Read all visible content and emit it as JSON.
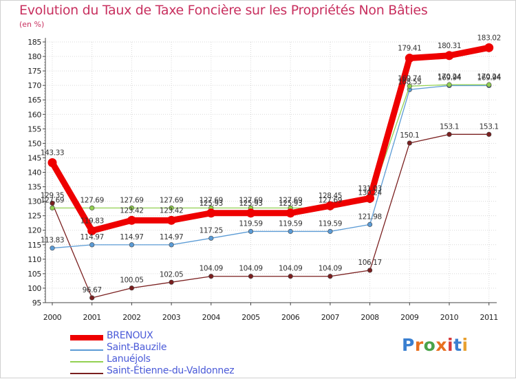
{
  "colors": {
    "title": "#c8305f",
    "legend_text": "#4a5ad8",
    "axis": "#444444",
    "grid": "#d8d8d8",
    "logo": [
      "#3a7fd0",
      "#e8701f",
      "#4aa34a",
      "#e8701f",
      "#d73a3a",
      "#3a7fd0",
      "#e8a02f"
    ]
  },
  "chart_data": {
    "type": "line",
    "title": "Evolution du Taux de Taxe Foncière sur les Propriétés Non Bâties",
    "unit_label": "(en %)",
    "x": [
      "2000",
      "2001",
      "2002",
      "2003",
      "2004",
      "2005",
      "2006",
      "2007",
      "2008",
      "2009",
      "2010",
      "2011"
    ],
    "ylim": [
      95,
      185
    ],
    "yticks": [
      95,
      100,
      105,
      110,
      115,
      120,
      125,
      130,
      135,
      140,
      145,
      150,
      155,
      160,
      165,
      170,
      175,
      180,
      185
    ],
    "series": [
      {
        "name": "BRENOUX",
        "color": "#ee0000",
        "values": [
          143.33,
          119.83,
          123.42,
          123.42,
          125.93,
          125.93,
          125.93,
          128.45,
          131.03,
          179.41,
          180.31,
          183.02
        ],
        "labels": [
          "143.33",
          "119.83",
          "123.42",
          "123.42",
          "125.93",
          "125.93",
          "125.93",
          "128.45",
          "131.03",
          "179.41",
          "180.31",
          "183.02"
        ]
      },
      {
        "name": "Saint-Bauzile",
        "color": "#5b9bd5",
        "values": [
          113.83,
          114.97,
          114.97,
          114.97,
          117.25,
          119.59,
          119.59,
          119.59,
          121.98,
          168.55,
          169.94,
          169.94
        ],
        "labels": [
          "113.83",
          "114.97",
          "114.97",
          "114.97",
          "117.25",
          "119.59",
          "119.59",
          "119.59",
          "121.98",
          "168.55",
          "169.94",
          "169.94"
        ]
      },
      {
        "name": "Lanuéjols",
        "color": "#92d050",
        "values": [
          127.69,
          127.69,
          127.69,
          127.69,
          127.69,
          127.69,
          127.69,
          127.69,
          130.24,
          169.74,
          170.24,
          170.24
        ],
        "labels": [
          "127.69",
          "127.69",
          "127.69",
          "127.69",
          "127.69",
          "127.69",
          "127.69",
          "127.69",
          "130.24",
          "169.74",
          "170.24",
          "170.24"
        ]
      },
      {
        "name": "Saint-Étienne-du-Valdonnez",
        "color": "#7a1f1f",
        "values": [
          129.35,
          96.67,
          100.05,
          102.05,
          104.09,
          104.09,
          104.09,
          104.09,
          106.17,
          150.1,
          153.1,
          153.1
        ],
        "labels": [
          "129.35",
          "96.67",
          "100.05",
          "102.05",
          "104.09",
          "104.09",
          "104.09",
          "104.09",
          "106.17",
          "150.1",
          "153.1",
          "153.1"
        ]
      }
    ],
    "legend": [
      "BRENOUX",
      "Saint-Bauzile",
      "Lanuéjols",
      "Saint-Étienne-du-Valdonnez"
    ],
    "legend_position": "bottom-left"
  },
  "logo": {
    "text": "Proxiti"
  }
}
